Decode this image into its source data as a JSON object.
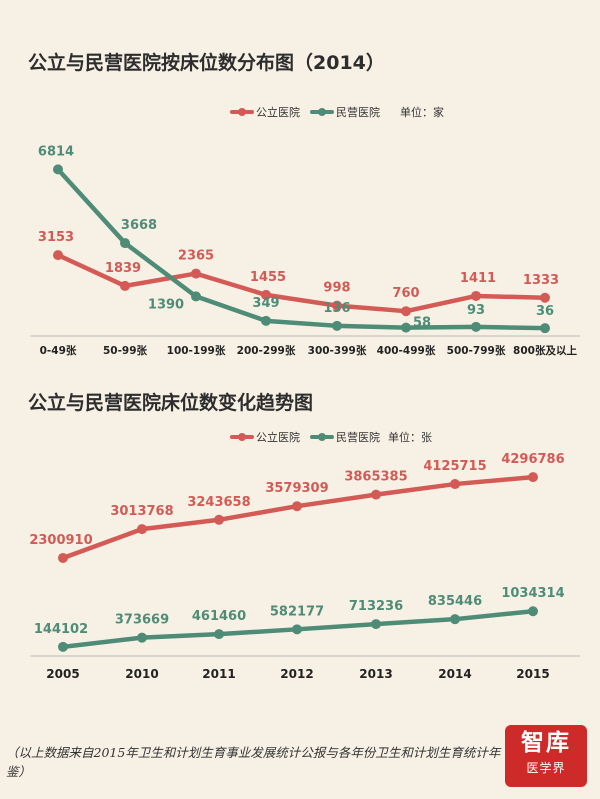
{
  "chart_data": [
    {
      "type": "line",
      "title": "公立与民营医院按床位数分布图（2014）",
      "unit_label": "单位：家",
      "categories": [
        "0-49张",
        "50-99张",
        "100-199张",
        "200-299张",
        "300-399张",
        "400-499张",
        "500-799张",
        "800张及以上"
      ],
      "series": [
        {
          "name": "公立医院",
          "color": "#d35a55",
          "values": [
            3153,
            1839,
            2365,
            1455,
            998,
            760,
            1411,
            1333
          ]
        },
        {
          "name": "民营医院",
          "color": "#4f8c78",
          "values": [
            6814,
            3668,
            1390,
            349,
            136,
            58,
            93,
            36
          ]
        }
      ],
      "ylim": [
        0,
        7000
      ],
      "legend": "top-right"
    },
    {
      "type": "line",
      "title": "公立与民营医院床位数变化趋势图",
      "unit_label": "单位：张",
      "categories": [
        "2005",
        "2010",
        "2011",
        "2012",
        "2013",
        "2014",
        "2015"
      ],
      "series": [
        {
          "name": "公立医院",
          "color": "#d35a55",
          "values": [
            2300910,
            3013768,
            3243658,
            3579309,
            3865385,
            4125715,
            4296786
          ]
        },
        {
          "name": "民营医院",
          "color": "#4f8c78",
          "values": [
            144102,
            373669,
            461460,
            582177,
            713236,
            835446,
            1034314
          ]
        }
      ],
      "legend": "top-right"
    }
  ],
  "footnote": "（以上数据来自2015年卫生和计划生育事业发展统计公报与各年份卫生和计划生育统计年鉴）",
  "logo": {
    "main": "智库",
    "sub": "医学界"
  }
}
